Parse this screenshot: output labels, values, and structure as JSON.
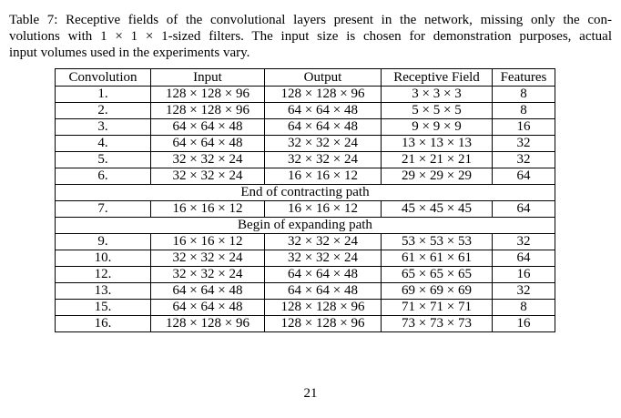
{
  "caption": {
    "line1": "Table 7: Receptive fields of the convolutional layers present in the network, missing only the con-",
    "line2": "volutions with 1 × 1 × 1-sized filters. The input size is chosen for demonstration purposes, actual",
    "line3": "input volumes used in the experiments vary."
  },
  "table": {
    "headers": [
      "Convolution",
      "Input",
      "Output",
      "Receptive Field",
      "Features"
    ],
    "contracting_rows": [
      [
        "1.",
        "128 × 128 × 96",
        "128 × 128 × 96",
        "3 × 3 × 3",
        "8"
      ],
      [
        "2.",
        "128 × 128 × 96",
        "64 × 64 × 48",
        "5 × 5 × 5",
        "8"
      ],
      [
        "3.",
        "64 × 64 × 48",
        "64 × 64 × 48",
        "9 × 9 × 9",
        "16"
      ],
      [
        "4.",
        "64 × 64 × 48",
        "32 × 32 × 24",
        "13 × 13 × 13",
        "32"
      ],
      [
        "5.",
        "32 × 32 × 24",
        "32 × 32 × 24",
        "21 × 21 × 21",
        "32"
      ],
      [
        "6.",
        "32 × 32 × 24",
        "16 × 16 × 12",
        "29 × 29 × 29",
        "64"
      ]
    ],
    "section_end_contracting": "End of contracting path",
    "middle_row": [
      "7.",
      "16 × 16 × 12",
      "16 × 16 × 12",
      "45 × 45 × 45",
      "64"
    ],
    "section_begin_expanding": "Begin of expanding path",
    "expanding_rows": [
      [
        "9.",
        "16 × 16 × 12",
        "32 × 32 × 24",
        "53 × 53 × 53",
        "32"
      ],
      [
        "10.",
        "32 × 32 × 24",
        "32 × 32 × 24",
        "61 × 61 × 61",
        "64"
      ],
      [
        "12.",
        "32 × 32 × 24",
        "64 × 64 × 48",
        "65 × 65 × 65",
        "16"
      ],
      [
        "13.",
        "64 × 64 × 48",
        "64 × 64 × 48",
        "69 × 69 × 69",
        "32"
      ],
      [
        "15.",
        "64 × 64 × 48",
        "128 × 128 × 96",
        "71 × 71 × 71",
        "8"
      ],
      [
        "16.",
        "128 × 128 × 96",
        "128 × 128 × 96",
        "73 × 73 × 73",
        "16"
      ]
    ]
  },
  "page_number": "21"
}
